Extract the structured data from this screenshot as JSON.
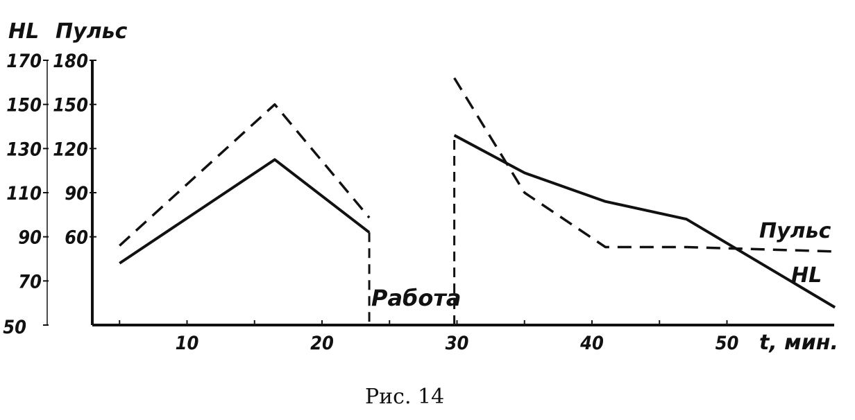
{
  "chart_data": {
    "type": "line",
    "caption": "Рис. 14",
    "xlabel": "t, мин.",
    "x_ticks": [
      10,
      20,
      30,
      40,
      50
    ],
    "x_minor_ticks": [
      5,
      15,
      25,
      35,
      45
    ],
    "xlim": [
      -3,
      58
    ],
    "y_axes": {
      "left_outer": {
        "label": "HL",
        "ticks": [
          50,
          70,
          90,
          110,
          130,
          150,
          170
        ],
        "range": [
          50,
          170
        ]
      },
      "left_inner": {
        "label": "Пульс",
        "ticks": [
          60,
          90,
          120,
          150,
          180
        ],
        "range": [
          0,
          180
        ]
      }
    },
    "series": [
      {
        "name": "HL",
        "axis": "left_outer",
        "style": "solid",
        "segments": [
          [
            [
              5,
              78
            ],
            [
              16.5,
              125
            ],
            [
              23.5,
              92
            ]
          ],
          [
            [
              29.8,
              136
            ],
            [
              35,
              119
            ],
            [
              41,
              106
            ],
            [
              47,
              98
            ],
            [
              58,
              58
            ]
          ]
        ]
      },
      {
        "name": "Пульс",
        "axis": "left_inner",
        "style": "dashed",
        "segments": [
          [
            [
              5,
              54
            ],
            [
              16.5,
              150
            ],
            [
              23.5,
              73
            ]
          ],
          [
            [
              29.8,
              168
            ],
            [
              35,
              90
            ],
            [
              41,
              53
            ],
            [
              47,
              53
            ],
            [
              58,
              50
            ]
          ]
        ]
      }
    ],
    "annotations": [
      {
        "text": "Работа",
        "x": 26.8
      }
    ],
    "series_labels": {
      "pulse": "Пульс",
      "hl": "HL"
    }
  }
}
